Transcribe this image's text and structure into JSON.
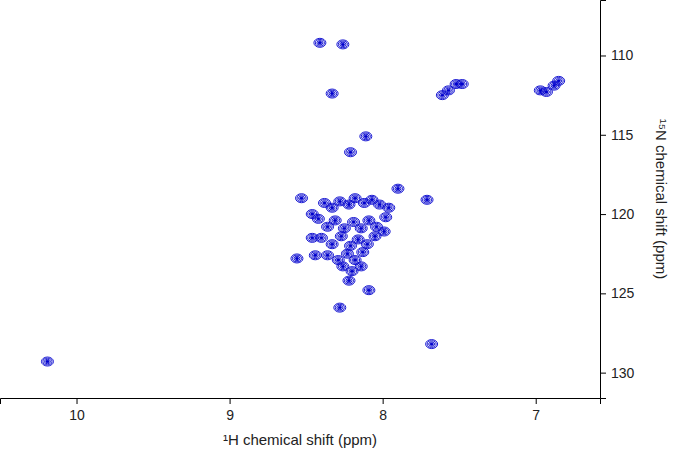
{
  "chart_data": {
    "type": "scatter",
    "marker": "contour",
    "color": "#0000cd",
    "xlabel": "¹H chemical shift (ppm)",
    "ylabel": "¹⁵N chemical shift (ppm)",
    "xlim": [
      10.5,
      6.58
    ],
    "ylim": [
      106.5,
      131.6
    ],
    "xticks": [
      10,
      9,
      8,
      7
    ],
    "yticks": [
      110,
      115,
      120,
      125,
      130
    ],
    "x": [
      10.19,
      8.26,
      8.41,
      8.33,
      8.21,
      8.11,
      7.61,
      7.57,
      7.52,
      7.48,
      6.97,
      6.93,
      6.88,
      6.85,
      8.53,
      7.9,
      7.71,
      8.56,
      8.46,
      8.28,
      8.09,
      8.22,
      7.68,
      8.38,
      8.33,
      8.28,
      8.22,
      8.18,
      8.12,
      8.07,
      8.02,
      7.96,
      7.98,
      8.42,
      8.36,
      8.31,
      8.25,
      8.19,
      8.14,
      8.09,
      8.04,
      7.99,
      8.4,
      8.33,
      8.27,
      8.21,
      8.16,
      8.1,
      8.05,
      8.36,
      8.29,
      8.23,
      8.18,
      8.13,
      8.2,
      8.14,
      8.26,
      8.46,
      8.44
    ],
    "values": [
      129.3,
      109.3,
      109.2,
      112.4,
      116.1,
      115.1,
      112.5,
      112.2,
      111.8,
      111.8,
      112.2,
      112.3,
      111.9,
      111.6,
      119.0,
      118.4,
      119.1,
      122.8,
      121.5,
      125.9,
      124.8,
      124.2,
      128.2,
      119.3,
      119.6,
      119.2,
      119.4,
      119.0,
      119.3,
      119.1,
      119.4,
      119.6,
      120.2,
      120.3,
      120.8,
      120.4,
      120.9,
      120.5,
      120.9,
      120.4,
      120.8,
      121.1,
      121.5,
      121.9,
      121.4,
      122.0,
      121.6,
      121.9,
      121.4,
      122.6,
      122.9,
      122.5,
      122.9,
      122.4,
      123.6,
      123.3,
      123.3,
      120.0,
      122.6
    ]
  }
}
